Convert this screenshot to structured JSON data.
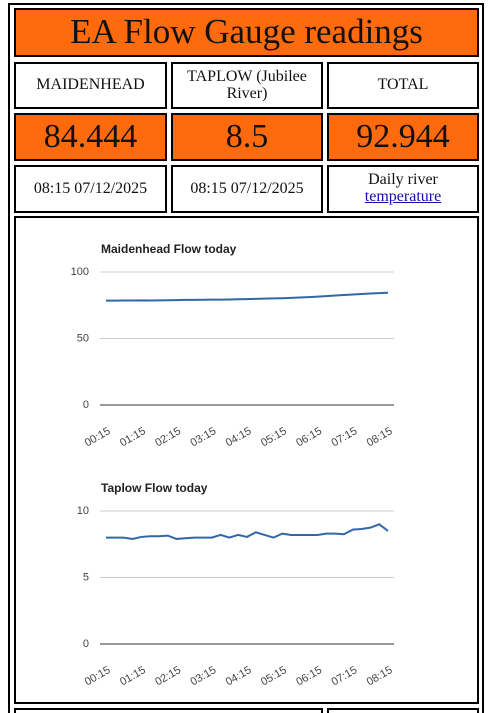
{
  "table": {
    "title": "EA Flow Gauge readings",
    "rows": [
      [
        "MAIDENHEAD",
        "TAPLOW (Jubilee River)",
        "TOTAL"
      ],
      [
        "84.444",
        "8.5",
        "92.944"
      ],
      [
        "08:15 07/12/2025",
        "08:15 07/12/2025",
        "Daily river"
      ]
    ],
    "link": "temperature"
  },
  "chart_data": [
    {
      "type": "line",
      "title": "Maidenhead Flow today",
      "categories": [
        "00:15",
        null,
        null,
        null,
        "01:15",
        null,
        null,
        null,
        "02:15",
        null,
        null,
        null,
        "03:15",
        null,
        null,
        null,
        "04:15",
        null,
        null,
        null,
        "05:15",
        null,
        null,
        null,
        "06:15",
        null,
        null,
        null,
        "07:15",
        null,
        null,
        null,
        "08:15"
      ],
      "series": [
        {
          "name": "Maidenhead",
          "color": "#3366a8",
          "values": [
            78.5,
            78.5,
            78.6,
            78.6,
            78.7,
            78.6,
            78.7,
            78.8,
            78.9,
            79.0,
            79.0,
            79.1,
            79.2,
            79.2,
            79.3,
            79.5,
            79.6,
            79.8,
            80.0,
            80.2,
            80.3,
            80.5,
            80.8,
            81.1,
            81.5,
            81.9,
            82.3,
            82.7,
            83.1,
            83.5,
            83.8,
            84.1,
            84.444
          ]
        }
      ],
      "ylim": [
        0,
        100
      ],
      "yticks": [
        0,
        50,
        100
      ],
      "grid": true
    },
    {
      "type": "line",
      "title": "Taplow Flow today",
      "categories": [
        "00:15",
        null,
        null,
        null,
        "01:15",
        null,
        null,
        null,
        "02:15",
        null,
        null,
        null,
        "03:15",
        null,
        null,
        null,
        "04:15",
        null,
        null,
        null,
        "05:15",
        null,
        null,
        null,
        "06:15",
        null,
        null,
        null,
        "07:15",
        null,
        null,
        null,
        "08:15"
      ],
      "series": [
        {
          "name": "Taplow",
          "color": "#3366a8",
          "values": [
            8.0,
            8.0,
            8.0,
            7.9,
            8.05,
            8.1,
            8.1,
            8.15,
            7.9,
            7.95,
            8.0,
            8.0,
            8.0,
            8.2,
            8.0,
            8.2,
            8.05,
            8.4,
            8.2,
            8.0,
            8.3,
            8.2,
            8.2,
            8.2,
            8.2,
            8.3,
            8.3,
            8.25,
            8.6,
            8.65,
            8.75,
            9.0,
            8.5
          ]
        }
      ],
      "ylim": [
        0,
        10
      ],
      "yticks": [
        0,
        5,
        10
      ],
      "grid": true
    }
  ]
}
